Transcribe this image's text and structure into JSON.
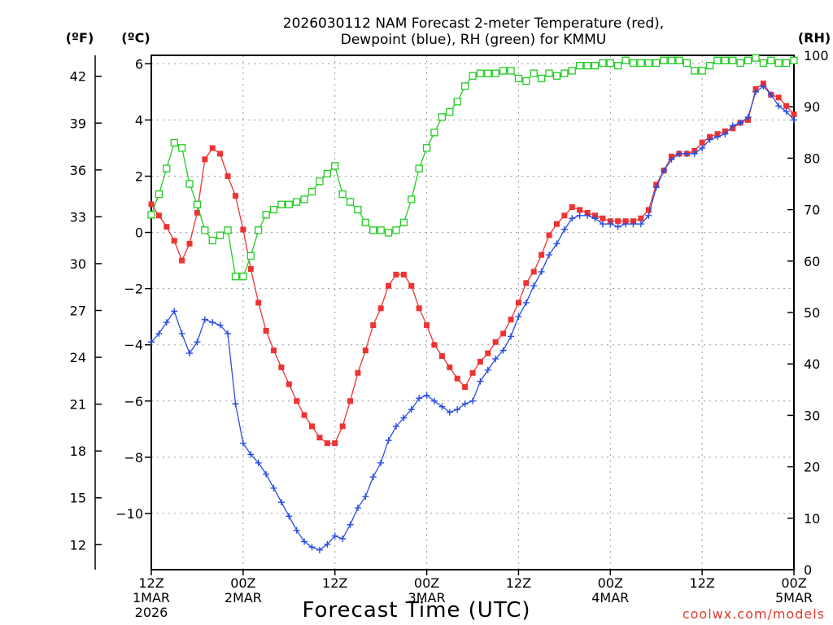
{
  "chart_data": {
    "type": "line",
    "title_line1": "2026030112 NAM Forecast 2-meter Temperature (red),",
    "title_line2": "Dewpoint (blue), RH (green) for KMMU",
    "xlabel": "Forecast Time (UTC)",
    "credit": "coolwx.com/models",
    "units": {
      "fahrenheit": "(ºF)",
      "celsius": "(ºC)",
      "rh": "(RH)"
    },
    "x_range_hours": [
      0,
      84
    ],
    "y_celsius_range": [
      -12.0,
      6.3
    ],
    "y_rh_range": [
      0,
      100
    ],
    "celsius_ticks": [
      {
        "value": 6,
        "label": "6"
      },
      {
        "value": 4,
        "label": "4"
      },
      {
        "value": 2,
        "label": "2"
      },
      {
        "value": 0,
        "label": "0"
      },
      {
        "value": -2,
        "label": "−2"
      },
      {
        "value": -4,
        "label": "−4"
      },
      {
        "value": -6,
        "label": "−6"
      },
      {
        "value": -8,
        "label": "−8"
      },
      {
        "value": -10,
        "label": "−10"
      }
    ],
    "fahrenheit_ticks": [
      "42",
      "39",
      "36",
      "33",
      "30",
      "27",
      "24",
      "21",
      "18",
      "15",
      "12"
    ],
    "rh_ticks": [
      "100",
      "90",
      "80",
      "70",
      "60",
      "50",
      "40",
      "30",
      "20",
      "10",
      "0"
    ],
    "x_ticks": [
      {
        "hour": 0,
        "lines": [
          "12Z",
          "1MAR",
          "2026"
        ]
      },
      {
        "hour": 12,
        "lines": [
          "00Z",
          "2MAR"
        ]
      },
      {
        "hour": 24,
        "lines": [
          "12Z"
        ]
      },
      {
        "hour": 36,
        "lines": [
          "00Z",
          "3MAR"
        ]
      },
      {
        "hour": 48,
        "lines": [
          "12Z"
        ]
      },
      {
        "hour": 60,
        "lines": [
          "00Z",
          "4MAR"
        ]
      },
      {
        "hour": 72,
        "lines": [
          "12Z"
        ]
      },
      {
        "hour": 84,
        "lines": [
          "00Z",
          "5MAR"
        ]
      }
    ],
    "series": [
      {
        "name": "Temperature",
        "unit": "C",
        "color": "#ee3333",
        "marker": "filled-square",
        "points": [
          [
            0,
            1.0
          ],
          [
            1,
            0.6
          ],
          [
            2,
            0.2
          ],
          [
            3,
            -0.3
          ],
          [
            4,
            -1.0
          ],
          [
            5,
            -0.4
          ],
          [
            6,
            0.7
          ],
          [
            7,
            2.6
          ],
          [
            8,
            3.0
          ],
          [
            9,
            2.8
          ],
          [
            10,
            2.0
          ],
          [
            11,
            1.3
          ],
          [
            12,
            0.1
          ],
          [
            13,
            -1.3
          ],
          [
            14,
            -2.5
          ],
          [
            15,
            -3.5
          ],
          [
            16,
            -4.2
          ],
          [
            17,
            -4.8
          ],
          [
            18,
            -5.4
          ],
          [
            19,
            -6.0
          ],
          [
            20,
            -6.5
          ],
          [
            21,
            -6.9
          ],
          [
            22,
            -7.3
          ],
          [
            23,
            -7.5
          ],
          [
            24,
            -7.5
          ],
          [
            25,
            -6.9
          ],
          [
            26,
            -6.0
          ],
          [
            27,
            -5.0
          ],
          [
            28,
            -4.2
          ],
          [
            29,
            -3.3
          ],
          [
            30,
            -2.7
          ],
          [
            31,
            -1.9
          ],
          [
            32,
            -1.5
          ],
          [
            33,
            -1.5
          ],
          [
            34,
            -1.9
          ],
          [
            35,
            -2.7
          ],
          [
            36,
            -3.3
          ],
          [
            37,
            -4.0
          ],
          [
            38,
            -4.4
          ],
          [
            39,
            -4.8
          ],
          [
            40,
            -5.2
          ],
          [
            41,
            -5.5
          ],
          [
            42,
            -5.0
          ],
          [
            43,
            -4.6
          ],
          [
            44,
            -4.3
          ],
          [
            45,
            -3.9
          ],
          [
            46,
            -3.6
          ],
          [
            47,
            -3.1
          ],
          [
            48,
            -2.5
          ],
          [
            49,
            -1.8
          ],
          [
            50,
            -1.4
          ],
          [
            51,
            -0.8
          ],
          [
            52,
            -0.1
          ],
          [
            53,
            0.3
          ],
          [
            54,
            0.6
          ],
          [
            55,
            0.9
          ],
          [
            56,
            0.8
          ],
          [
            57,
            0.7
          ],
          [
            58,
            0.6
          ],
          [
            59,
            0.5
          ],
          [
            60,
            0.4
          ],
          [
            61,
            0.4
          ],
          [
            62,
            0.4
          ],
          [
            63,
            0.4
          ],
          [
            64,
            0.5
          ],
          [
            65,
            0.8
          ],
          [
            66,
            1.7
          ],
          [
            67,
            2.2
          ],
          [
            68,
            2.7
          ],
          [
            69,
            2.8
          ],
          [
            70,
            2.8
          ],
          [
            71,
            2.9
          ],
          [
            72,
            3.2
          ],
          [
            73,
            3.4
          ],
          [
            74,
            3.5
          ],
          [
            75,
            3.6
          ],
          [
            76,
            3.7
          ],
          [
            77,
            3.9
          ],
          [
            78,
            4.0
          ],
          [
            79,
            5.1
          ],
          [
            80,
            5.3
          ],
          [
            81,
            4.9
          ],
          [
            82,
            4.8
          ],
          [
            83,
            4.5
          ],
          [
            84,
            4.2
          ]
        ]
      },
      {
        "name": "Dewpoint",
        "unit": "C",
        "color": "#2a4de0",
        "marker": "plus",
        "points": [
          [
            0,
            -3.9
          ],
          [
            1,
            -3.6
          ],
          [
            2,
            -3.2
          ],
          [
            3,
            -2.8
          ],
          [
            4,
            -3.6
          ],
          [
            5,
            -4.3
          ],
          [
            6,
            -3.9
          ],
          [
            7,
            -3.1
          ],
          [
            8,
            -3.2
          ],
          [
            9,
            -3.3
          ],
          [
            10,
            -3.6
          ],
          [
            11,
            -6.1
          ],
          [
            12,
            -7.5
          ],
          [
            13,
            -7.9
          ],
          [
            14,
            -8.2
          ],
          [
            15,
            -8.6
          ],
          [
            16,
            -9.1
          ],
          [
            17,
            -9.6
          ],
          [
            18,
            -10.1
          ],
          [
            19,
            -10.6
          ],
          [
            20,
            -11.0
          ],
          [
            21,
            -11.2
          ],
          [
            22,
            -11.3
          ],
          [
            23,
            -11.1
          ],
          [
            24,
            -10.8
          ],
          [
            25,
            -10.9
          ],
          [
            26,
            -10.4
          ],
          [
            27,
            -9.8
          ],
          [
            28,
            -9.4
          ],
          [
            29,
            -8.7
          ],
          [
            30,
            -8.2
          ],
          [
            31,
            -7.4
          ],
          [
            32,
            -6.9
          ],
          [
            33,
            -6.6
          ],
          [
            34,
            -6.3
          ],
          [
            35,
            -5.9
          ],
          [
            36,
            -5.8
          ],
          [
            37,
            -6.0
          ],
          [
            38,
            -6.2
          ],
          [
            39,
            -6.4
          ],
          [
            40,
            -6.3
          ],
          [
            41,
            -6.1
          ],
          [
            42,
            -6.0
          ],
          [
            43,
            -5.3
          ],
          [
            44,
            -4.9
          ],
          [
            45,
            -4.5
          ],
          [
            46,
            -4.2
          ],
          [
            47,
            -3.7
          ],
          [
            48,
            -3.0
          ],
          [
            49,
            -2.5
          ],
          [
            50,
            -1.9
          ],
          [
            51,
            -1.4
          ],
          [
            52,
            -0.8
          ],
          [
            53,
            -0.4
          ],
          [
            54,
            0.1
          ],
          [
            55,
            0.5
          ],
          [
            56,
            0.6
          ],
          [
            57,
            0.6
          ],
          [
            58,
            0.5
          ],
          [
            59,
            0.3
          ],
          [
            60,
            0.3
          ],
          [
            61,
            0.2
          ],
          [
            62,
            0.3
          ],
          [
            63,
            0.3
          ],
          [
            64,
            0.3
          ],
          [
            65,
            0.6
          ],
          [
            66,
            1.6
          ],
          [
            67,
            2.2
          ],
          [
            68,
            2.6
          ],
          [
            69,
            2.8
          ],
          [
            70,
            2.8
          ],
          [
            71,
            2.8
          ],
          [
            72,
            3.0
          ],
          [
            73,
            3.3
          ],
          [
            74,
            3.4
          ],
          [
            75,
            3.5
          ],
          [
            76,
            3.8
          ],
          [
            77,
            3.9
          ],
          [
            78,
            4.1
          ],
          [
            79,
            5.0
          ],
          [
            80,
            5.2
          ],
          [
            81,
            4.9
          ],
          [
            82,
            4.5
          ],
          [
            83,
            4.3
          ],
          [
            84,
            4.0
          ]
        ]
      },
      {
        "name": "Relative Humidity",
        "unit": "%",
        "color": "#22cc22",
        "marker": "open-square",
        "points": [
          [
            0,
            69
          ],
          [
            1,
            73
          ],
          [
            2,
            78
          ],
          [
            3,
            83
          ],
          [
            4,
            82
          ],
          [
            5,
            75
          ],
          [
            6,
            71
          ],
          [
            7,
            66
          ],
          [
            8,
            64
          ],
          [
            9,
            65
          ],
          [
            10,
            66
          ],
          [
            11,
            57
          ],
          [
            12,
            57
          ],
          [
            13,
            61
          ],
          [
            14,
            66
          ],
          [
            15,
            69
          ],
          [
            16,
            70
          ],
          [
            17,
            71
          ],
          [
            18,
            71
          ],
          [
            19,
            71.5
          ],
          [
            20,
            72
          ],
          [
            21,
            73.5
          ],
          [
            22,
            75.5
          ],
          [
            23,
            77
          ],
          [
            24,
            78.5
          ],
          [
            25,
            73
          ],
          [
            26,
            71.5
          ],
          [
            27,
            70
          ],
          [
            28,
            67.5
          ],
          [
            29,
            66
          ],
          [
            30,
            66
          ],
          [
            31,
            65.5
          ],
          [
            32,
            66
          ],
          [
            33,
            67.5
          ],
          [
            34,
            72
          ],
          [
            35,
            78
          ],
          [
            36,
            82
          ],
          [
            37,
            85
          ],
          [
            38,
            88
          ],
          [
            39,
            89
          ],
          [
            40,
            91
          ],
          [
            41,
            94
          ],
          [
            42,
            96
          ],
          [
            43,
            96.5
          ],
          [
            44,
            96.5
          ],
          [
            45,
            96.5
          ],
          [
            46,
            97
          ],
          [
            47,
            97
          ],
          [
            48,
            95.5
          ],
          [
            49,
            95
          ],
          [
            50,
            96.5
          ],
          [
            51,
            95.5
          ],
          [
            52,
            96.5
          ],
          [
            53,
            96
          ],
          [
            54,
            96.5
          ],
          [
            55,
            97
          ],
          [
            56,
            98
          ],
          [
            57,
            98
          ],
          [
            58,
            98
          ],
          [
            59,
            98.5
          ],
          [
            60,
            98.5
          ],
          [
            61,
            98
          ],
          [
            62,
            99
          ],
          [
            63,
            98.5
          ],
          [
            64,
            98.5
          ],
          [
            65,
            98.5
          ],
          [
            66,
            98.5
          ],
          [
            67,
            99
          ],
          [
            68,
            99
          ],
          [
            69,
            99
          ],
          [
            70,
            98.5
          ],
          [
            71,
            97
          ],
          [
            72,
            97
          ],
          [
            73,
            98
          ],
          [
            74,
            99
          ],
          [
            75,
            99
          ],
          [
            76,
            99
          ],
          [
            77,
            98.5
          ],
          [
            78,
            99
          ],
          [
            79,
            99.5
          ],
          [
            80,
            98.5
          ],
          [
            81,
            99
          ],
          [
            82,
            98.5
          ],
          [
            83,
            98.5
          ],
          [
            84,
            99
          ]
        ]
      }
    ]
  }
}
